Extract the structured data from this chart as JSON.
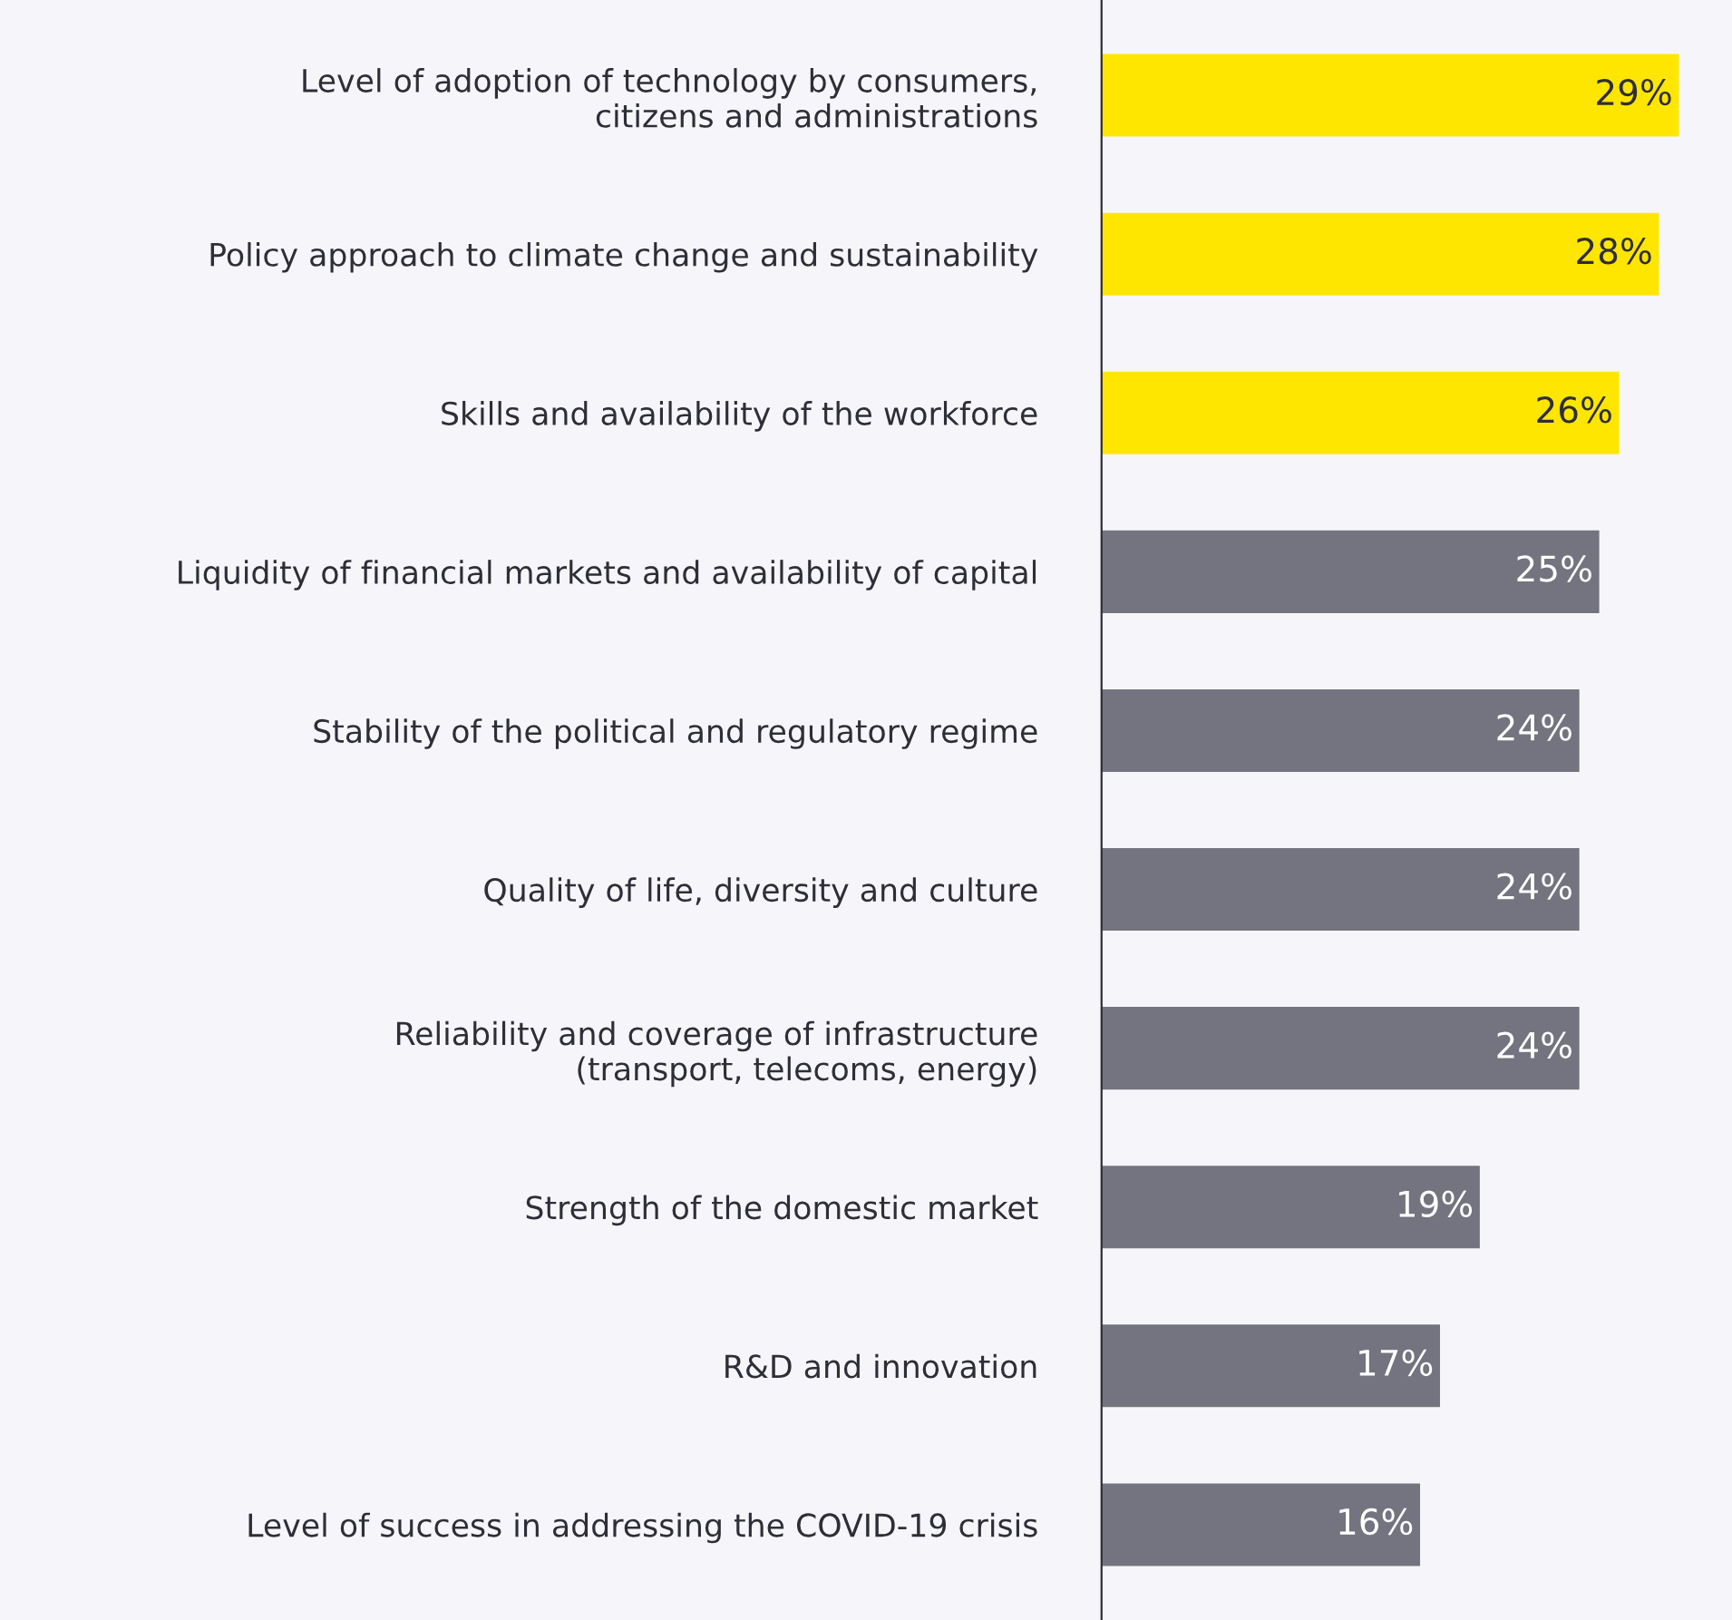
{
  "chart_data": {
    "type": "bar",
    "orientation": "horizontal",
    "categories": [
      "Level of adoption of technology by consumers,\ncitizens and administrations",
      "Policy approach to climate change and sustainability",
      "Skills and availability of the workforce",
      "Liquidity of financial markets and availability of capital",
      "Stability of the political and regulatory regime",
      "Quality of life, diversity and culture",
      "Reliability and coverage of infrastructure\n(transport, telecoms, energy)",
      "Strength of the domestic market",
      "R&D and innovation",
      "Level of success in addressing the COVID-19 crisis"
    ],
    "values": [
      29,
      28,
      26,
      25,
      24,
      24,
      24,
      19,
      17,
      16
    ],
    "colors": [
      "#ffe600",
      "#ffe600",
      "#ffe600",
      "#747480",
      "#747480",
      "#747480",
      "#747480",
      "#747480",
      "#747480",
      "#747480"
    ],
    "value_labels": [
      "29%",
      "28%",
      "26%",
      "25%",
      "24%",
      "24%",
      "24%",
      "19%",
      "17%",
      "16%"
    ],
    "grid": false,
    "legend": false
  }
}
